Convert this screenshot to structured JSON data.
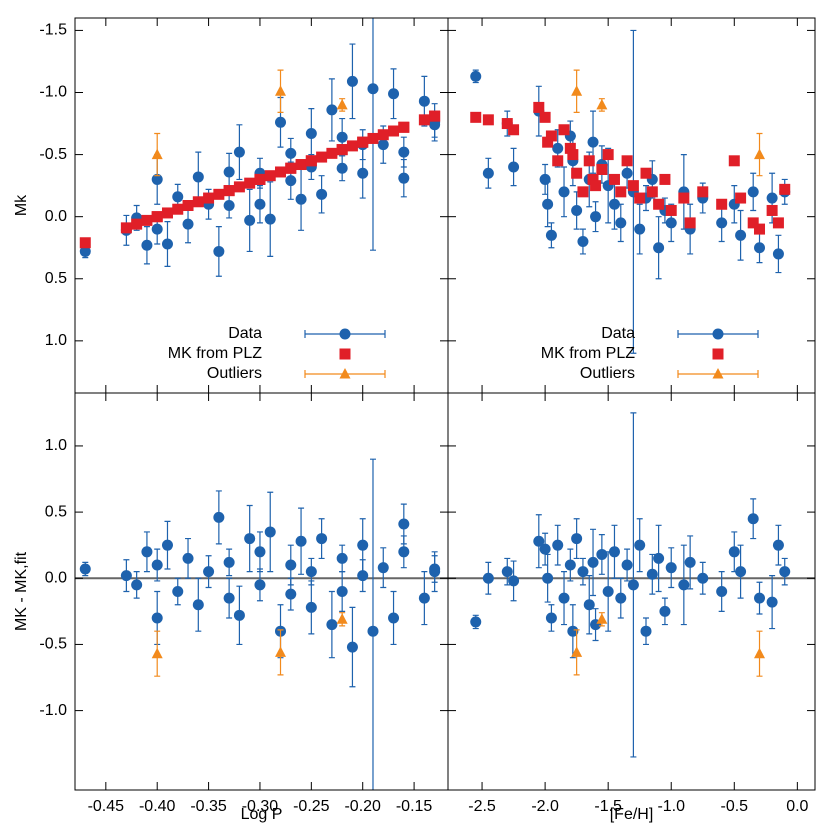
{
  "chart_data": [
    {
      "type": "scatter",
      "ylabel": "Mk",
      "xlim": [
        -0.48,
        -0.117
      ],
      "ylim": [
        -1.6,
        1.42
      ],
      "y_reversed": true,
      "xticks": [
        -0.45,
        -0.4,
        -0.35,
        -0.3,
        -0.25,
        -0.2,
        -0.15
      ],
      "yticks": [
        -1.5,
        {
          "value": -1,
          "label": "-1.0"
        },
        -0.5,
        {
          "value": 0,
          "label": "0.0"
        },
        0.5,
        {
          "value": 1,
          "label": "1.0"
        }
      ],
      "show_xtick_labels": false,
      "show_ytick_labels": true,
      "legend": "bottom right",
      "series": [
        {
          "name": "Data",
          "color": "#1e62ad",
          "marker": "circle",
          "x": [
            -0.47,
            -0.43,
            -0.42,
            -0.41,
            -0.4,
            -0.4,
            -0.39,
            -0.38,
            -0.37,
            -0.36,
            -0.35,
            -0.34,
            -0.33,
            -0.33,
            -0.32,
            -0.31,
            -0.3,
            -0.3,
            -0.29,
            -0.28,
            -0.27,
            -0.27,
            -0.26,
            -0.25,
            -0.25,
            -0.24,
            -0.23,
            -0.22,
            -0.22,
            -0.21,
            -0.2,
            -0.2,
            -0.19,
            -0.18,
            -0.17,
            -0.16,
            -0.16,
            -0.14,
            -0.13,
            -0.13
          ],
          "values": [
            0.28,
            0.11,
            0.01,
            0.23,
            -0.3,
            0.1,
            0.22,
            -0.16,
            0.06,
            -0.32,
            -0.1,
            0.28,
            -0.36,
            -0.09,
            -0.52,
            0.03,
            -0.35,
            -0.1,
            0.02,
            -0.76,
            -0.29,
            -0.51,
            -0.14,
            -0.67,
            -0.4,
            -0.18,
            -0.86,
            -0.39,
            -0.64,
            -1.09,
            -0.35,
            -0.58,
            -1.03,
            -0.58,
            -0.99,
            -0.31,
            -0.52,
            -0.93,
            -0.76,
            -0.74
          ],
          "errors": [
            0.05,
            0.12,
            0.1,
            0.15,
            0.2,
            0.12,
            0.18,
            0.1,
            0.15,
            0.2,
            0.12,
            0.2,
            0.15,
            0.1,
            0.22,
            0.25,
            0.12,
            0.15,
            0.3,
            0.2,
            0.15,
            0.12,
            0.25,
            0.2,
            0.1,
            0.15,
            0.25,
            0.1,
            0.15,
            0.3,
            0.2,
            0.12,
            1.3,
            0.15,
            0.2,
            0.15,
            0.12,
            0.2,
            0.15,
            0.1
          ]
        },
        {
          "name": "MK from PLZ",
          "color": "#e01f28",
          "marker": "square",
          "x": [
            -0.47,
            -0.43,
            -0.42,
            -0.41,
            -0.4,
            -0.4,
            -0.39,
            -0.38,
            -0.37,
            -0.36,
            -0.35,
            -0.34,
            -0.33,
            -0.33,
            -0.32,
            -0.31,
            -0.3,
            -0.3,
            -0.29,
            -0.28,
            -0.27,
            -0.27,
            -0.26,
            -0.25,
            -0.25,
            -0.24,
            -0.23,
            -0.22,
            -0.22,
            -0.21,
            -0.2,
            -0.2,
            -0.19,
            -0.18,
            -0.17,
            -0.16,
            -0.16,
            -0.14,
            -0.13,
            -0.13
          ],
          "values": [
            0.21,
            0.09,
            0.06,
            0.03,
            0.0,
            0.0,
            -0.03,
            -0.06,
            -0.09,
            -0.12,
            -0.15,
            -0.18,
            -0.21,
            -0.21,
            -0.24,
            -0.27,
            -0.3,
            -0.3,
            -0.33,
            -0.36,
            -0.39,
            -0.39,
            -0.42,
            -0.45,
            -0.45,
            -0.48,
            -0.51,
            -0.54,
            -0.54,
            -0.57,
            -0.6,
            -0.6,
            -0.63,
            -0.66,
            -0.69,
            -0.72,
            -0.72,
            -0.78,
            -0.81,
            -0.81
          ]
        },
        {
          "name": "Outliers",
          "color": "#f28a1c",
          "marker": "triangle",
          "x": [
            -0.4,
            -0.28,
            -0.22
          ],
          "values": [
            -0.5,
            -1.01,
            -0.9
          ],
          "errors": [
            0.17,
            0.17,
            0.05
          ]
        }
      ]
    },
    {
      "type": "scatter",
      "xlim": [
        -2.77,
        0.14
      ],
      "ylim": [
        -1.6,
        1.42
      ],
      "y_reversed": true,
      "xticks": [
        -2.5,
        -2,
        -1.5,
        -1,
        -0.5,
        0
      ],
      "yticks": [
        -1.5,
        -1,
        -0.5,
        0,
        0.5,
        1
      ],
      "show_xtick_labels": false,
      "show_ytick_labels": false,
      "legend": "bottom right",
      "series": [
        {
          "name": "Data",
          "color": "#1e62ad",
          "marker": "circle",
          "x": [
            -2.55,
            -2.45,
            -2.3,
            -2.25,
            -2.05,
            -2.0,
            -1.98,
            -1.95,
            -1.9,
            -1.85,
            -1.8,
            -1.78,
            -1.75,
            -1.7,
            -1.65,
            -1.62,
            -1.6,
            -1.55,
            -1.5,
            -1.45,
            -1.4,
            -1.35,
            -1.3,
            -1.25,
            -1.2,
            -1.15,
            -1.1,
            -1.05,
            -1.0,
            -0.9,
            -0.85,
            -0.75,
            -0.6,
            -0.5,
            -0.45,
            -0.35,
            -0.3,
            -0.2,
            -0.15,
            -0.1
          ],
          "values": [
            -1.13,
            -0.35,
            -0.75,
            -0.4,
            -0.85,
            -0.3,
            -0.1,
            0.15,
            -0.55,
            -0.2,
            -0.65,
            -0.45,
            -0.05,
            0.2,
            -0.3,
            -0.6,
            0.0,
            -0.42,
            -0.25,
            -0.1,
            0.05,
            -0.35,
            -0.2,
            0.1,
            -0.15,
            -0.3,
            0.25,
            -0.05,
            0.05,
            -0.2,
            0.1,
            -0.15,
            0.05,
            -0.1,
            0.15,
            -0.2,
            0.25,
            -0.15,
            0.3,
            -0.2
          ],
          "errors": [
            0.05,
            0.12,
            0.1,
            0.15,
            0.2,
            0.12,
            0.18,
            0.1,
            0.15,
            0.2,
            0.12,
            0.2,
            0.15,
            0.1,
            0.22,
            0.25,
            0.12,
            0.15,
            0.3,
            0.2,
            0.15,
            0.12,
            1.3,
            0.2,
            0.1,
            0.15,
            0.25,
            0.1,
            0.15,
            0.3,
            0.2,
            0.12,
            0.15,
            0.15,
            0.2,
            0.15,
            0.12,
            0.2,
            0.15,
            0.1
          ]
        },
        {
          "name": "MK from PLZ",
          "color": "#e01f28",
          "marker": "square",
          "x": [
            -2.55,
            -2.45,
            -2.3,
            -2.25,
            -2.05,
            -2.0,
            -1.98,
            -1.95,
            -1.9,
            -1.85,
            -1.8,
            -1.78,
            -1.75,
            -1.7,
            -1.65,
            -1.62,
            -1.6,
            -1.55,
            -1.5,
            -1.45,
            -1.4,
            -1.35,
            -1.3,
            -1.25,
            -1.2,
            -1.15,
            -1.1,
            -1.05,
            -1.0,
            -0.9,
            -0.85,
            -0.75,
            -0.6,
            -0.5,
            -0.45,
            -0.35,
            -0.3,
            -0.2,
            -0.15,
            -0.1
          ],
          "values": [
            -0.8,
            -0.78,
            -0.75,
            -0.7,
            -0.88,
            -0.8,
            -0.6,
            -0.65,
            -0.45,
            -0.7,
            -0.55,
            -0.5,
            -0.35,
            -0.2,
            -0.45,
            -0.3,
            -0.25,
            -0.38,
            -0.5,
            -0.3,
            -0.2,
            -0.45,
            -0.25,
            -0.15,
            -0.35,
            -0.2,
            -0.1,
            -0.3,
            -0.05,
            -0.15,
            0.05,
            -0.2,
            -0.1,
            -0.45,
            -0.15,
            0.05,
            0.1,
            -0.05,
            0.05,
            -0.22
          ]
        },
        {
          "name": "Outliers",
          "color": "#f28a1c",
          "marker": "triangle",
          "x": [
            -1.75,
            -1.55,
            -0.3
          ],
          "values": [
            -1.01,
            -0.9,
            -0.5
          ],
          "errors": [
            0.17,
            0.05,
            0.17
          ]
        }
      ]
    },
    {
      "type": "scatter",
      "xlabel": "Log P",
      "ylabel": "MK - MK,fit",
      "xlim": [
        -0.48,
        -0.117
      ],
      "ylim": [
        -1.6,
        1.4
      ],
      "y_reversed": false,
      "xticks": [
        -0.45,
        {
          "value": -0.4,
          "label": "-0.40"
        },
        -0.35,
        {
          "value": -0.3,
          "label": "-0.30"
        },
        -0.25,
        {
          "value": -0.2,
          "label": "-0.20"
        },
        -0.15
      ],
      "yticks": [
        {
          "value": -1,
          "label": "-1.0"
        },
        -0.5,
        {
          "value": 0,
          "label": "0.0"
        },
        0.5,
        {
          "value": 1,
          "label": "1.0"
        }
      ],
      "show_xtick_labels": true,
      "show_ytick_labels": true,
      "reference_line": 0,
      "series": [
        {
          "color": "#1e62ad",
          "marker": "circle",
          "x": [
            -0.47,
            -0.43,
            -0.42,
            -0.41,
            -0.4,
            -0.4,
            -0.39,
            -0.38,
            -0.37,
            -0.36,
            -0.35,
            -0.34,
            -0.33,
            -0.33,
            -0.32,
            -0.31,
            -0.3,
            -0.3,
            -0.29,
            -0.28,
            -0.27,
            -0.27,
            -0.26,
            -0.25,
            -0.25,
            -0.24,
            -0.23,
            -0.22,
            -0.22,
            -0.21,
            -0.2,
            -0.2,
            -0.19,
            -0.18,
            -0.17,
            -0.16,
            -0.16,
            -0.14,
            -0.13,
            -0.13
          ],
          "values": [
            0.07,
            0.02,
            -0.05,
            0.2,
            -0.3,
            0.1,
            0.25,
            -0.1,
            0.15,
            -0.2,
            0.05,
            0.46,
            -0.15,
            0.12,
            -0.28,
            0.3,
            -0.05,
            0.2,
            0.35,
            -0.4,
            0.1,
            -0.12,
            0.28,
            -0.22,
            0.05,
            0.3,
            -0.35,
            0.15,
            -0.1,
            -0.52,
            0.25,
            0.02,
            -0.4,
            0.08,
            -0.3,
            0.41,
            0.2,
            -0.15,
            0.05,
            0.07
          ],
          "errors": [
            0.05,
            0.12,
            0.1,
            0.15,
            0.2,
            0.12,
            0.18,
            0.1,
            0.15,
            0.2,
            0.12,
            0.2,
            0.15,
            0.1,
            0.22,
            0.25,
            0.12,
            0.15,
            0.3,
            0.2,
            0.15,
            0.12,
            0.25,
            0.2,
            0.1,
            0.15,
            0.25,
            0.1,
            0.15,
            0.3,
            0.2,
            0.12,
            1.3,
            0.15,
            0.2,
            0.15,
            0.12,
            0.2,
            0.15,
            0.1
          ]
        },
        {
          "color": "#f28a1c",
          "marker": "triangle",
          "x": [
            -0.4,
            -0.28,
            -0.22
          ],
          "values": [
            -0.57,
            -0.56,
            -0.31
          ],
          "errors": [
            0.17,
            0.17,
            0.05
          ]
        }
      ]
    },
    {
      "type": "scatter",
      "xlabel": "[Fe/H]",
      "xlim": [
        -2.77,
        0.14
      ],
      "ylim": [
        -1.6,
        1.4
      ],
      "y_reversed": false,
      "xticks": [
        -2.5,
        {
          "value": -2,
          "label": "-2.0"
        },
        -1.5,
        {
          "value": -1,
          "label": "-1.0"
        },
        -0.5,
        {
          "value": 0,
          "label": "0.0"
        }
      ],
      "yticks": [
        -1,
        -0.5,
        0,
        0.5,
        1
      ],
      "show_xtick_labels": true,
      "show_ytick_labels": false,
      "reference_line": 0,
      "series": [
        {
          "color": "#1e62ad",
          "marker": "circle",
          "x": [
            -2.55,
            -2.45,
            -2.3,
            -2.25,
            -2.05,
            -2.0,
            -1.98,
            -1.95,
            -1.9,
            -1.85,
            -1.8,
            -1.78,
            -1.75,
            -1.7,
            -1.65,
            -1.62,
            -1.6,
            -1.55,
            -1.5,
            -1.45,
            -1.4,
            -1.35,
            -1.3,
            -1.25,
            -1.2,
            -1.15,
            -1.1,
            -1.05,
            -1.0,
            -0.9,
            -0.85,
            -0.75,
            -0.6,
            -0.5,
            -0.45,
            -0.35,
            -0.3,
            -0.2,
            -0.15,
            -0.1
          ],
          "values": [
            -0.33,
            0.0,
            0.05,
            -0.02,
            0.28,
            0.22,
            0.0,
            -0.3,
            0.25,
            -0.15,
            0.1,
            -0.4,
            0.3,
            0.05,
            -0.2,
            0.12,
            -0.35,
            0.18,
            -0.1,
            0.2,
            -0.15,
            0.1,
            -0.05,
            0.25,
            -0.4,
            0.03,
            0.15,
            -0.25,
            0.08,
            -0.05,
            0.12,
            0.0,
            -0.1,
            0.2,
            0.05,
            0.45,
            -0.15,
            -0.18,
            0.25,
            0.05
          ],
          "errors": [
            0.05,
            0.12,
            0.1,
            0.15,
            0.2,
            0.12,
            0.18,
            0.1,
            0.15,
            0.2,
            0.12,
            0.2,
            0.15,
            0.1,
            0.22,
            0.25,
            0.12,
            0.15,
            0.3,
            0.2,
            0.15,
            0.12,
            1.3,
            0.2,
            0.1,
            0.15,
            0.25,
            0.1,
            0.15,
            0.3,
            0.2,
            0.12,
            0.15,
            0.15,
            0.2,
            0.15,
            0.12,
            0.2,
            0.15,
            0.1
          ]
        },
        {
          "color": "#f28a1c",
          "marker": "triangle",
          "x": [
            -1.75,
            -1.55,
            -0.3
          ],
          "values": [
            -0.56,
            -0.31,
            -0.57
          ],
          "errors": [
            0.17,
            0.05,
            0.17
          ]
        }
      ]
    }
  ]
}
